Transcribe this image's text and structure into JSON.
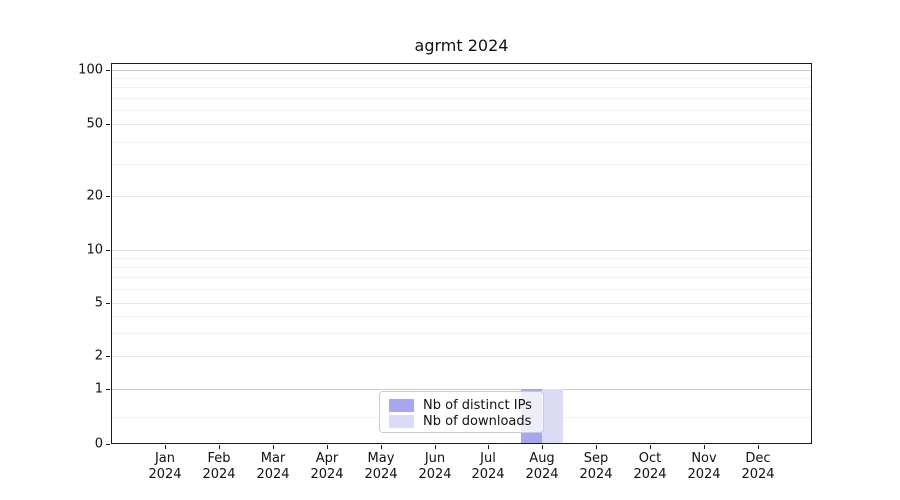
{
  "chart_data": {
    "type": "bar",
    "title": "agrmt 2024",
    "x_months": [
      "Jan",
      "Feb",
      "Mar",
      "Apr",
      "May",
      "Jun",
      "Jul",
      "Aug",
      "Sep",
      "Oct",
      "Nov",
      "Dec"
    ],
    "x_year": "2024",
    "categories": [
      "Jan 2024",
      "Feb 2024",
      "Mar 2024",
      "Apr 2024",
      "May 2024",
      "Jun 2024",
      "Jul 2024",
      "Aug 2024",
      "Sep 2024",
      "Oct 2024",
      "Nov 2024",
      "Dec 2024"
    ],
    "series": [
      {
        "name": "Nb of distinct IPs",
        "color": "#a7a7ef",
        "values": [
          0,
          0,
          0,
          0,
          0,
          0,
          0,
          1,
          0,
          0,
          0,
          0
        ]
      },
      {
        "name": "Nb of downloads",
        "color": "#dcdcf7",
        "values": [
          0,
          0,
          0,
          0,
          0,
          0,
          0,
          1,
          0,
          0,
          0,
          0
        ]
      }
    ],
    "y_tick_labels": [
      "100",
      "50",
      "20",
      "10",
      "5",
      "2",
      "1",
      "0"
    ],
    "y_tick_values": [
      100,
      50,
      20,
      10,
      5,
      2,
      1,
      0
    ],
    "ylim": [
      0,
      100
    ],
    "y_scale": "symlog (linear 0-1, log 1-100)",
    "grid": true,
    "legend_position": "lower center"
  }
}
